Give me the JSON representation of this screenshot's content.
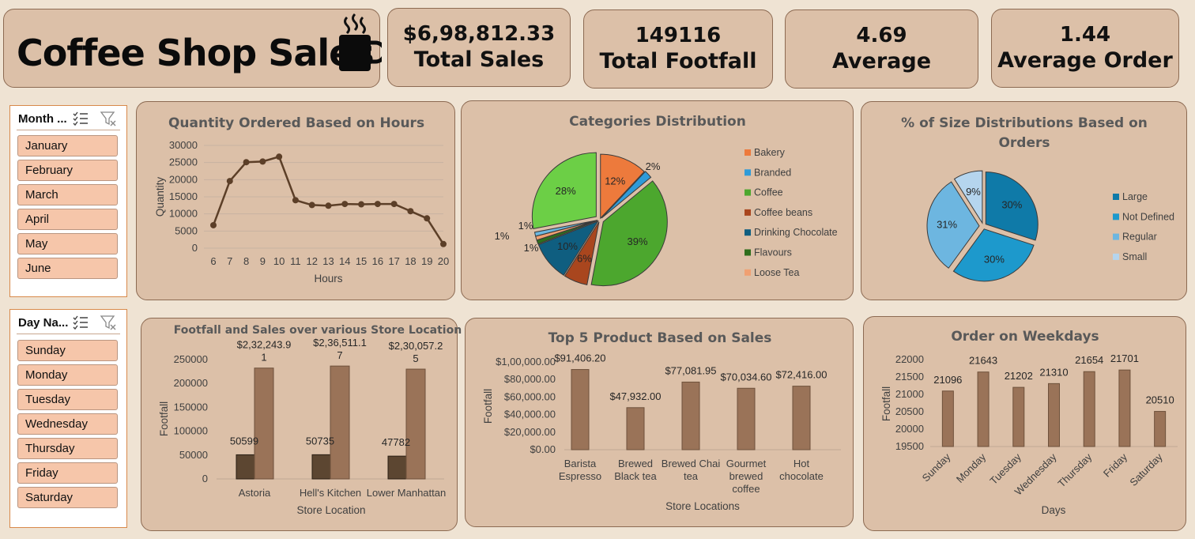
{
  "header": {
    "title": "Coffee Shop Sales",
    "icon": "coffee-mug-icon"
  },
  "kpis": [
    {
      "value": "$6,98,812.33",
      "label": "Total Sales"
    },
    {
      "value": "149116",
      "label": "Total Footfall"
    },
    {
      "value": "4.69",
      "label": "Average"
    },
    {
      "value": "1.44",
      "label": "Average Order"
    }
  ],
  "slicers": {
    "month": {
      "header": "Month ...",
      "items": [
        "January",
        "February",
        "March",
        "April",
        "May",
        "June"
      ]
    },
    "day": {
      "header": "Day Na...",
      "items": [
        "Sunday",
        "Monday",
        "Tuesday",
        "Wednesday",
        "Thursday",
        "Friday",
        "Saturday"
      ]
    }
  },
  "colors": {
    "background": "#efe3d3",
    "card": "#dcc0a8",
    "border": "#8c6a52",
    "bar_main": "#9a7358",
    "bar_dark": "#5c4631",
    "line": "#5c3f28"
  },
  "chart_data": [
    {
      "id": "hours",
      "type": "line",
      "title": "Quantity Ordered Based on Hours",
      "xlabel": "Hours",
      "ylabel": "Quantity",
      "x": [
        6,
        7,
        8,
        9,
        10,
        11,
        12,
        13,
        14,
        15,
        16,
        17,
        18,
        19,
        20
      ],
      "values": [
        6700,
        19600,
        25100,
        25300,
        26700,
        14000,
        12600,
        12400,
        12900,
        12800,
        12900,
        12900,
        10800,
        8700,
        1200
      ],
      "ylim": [
        0,
        30000
      ],
      "yticks": [
        "0",
        "5000",
        "10000",
        "15000",
        "20000",
        "25000",
        "30000"
      ],
      "grid": true
    },
    {
      "id": "categories",
      "type": "pie",
      "title": "Categories Distribution",
      "slices": [
        {
          "name": "Bakery",
          "pct": 12,
          "label": "12%",
          "color": "#ed7a3c"
        },
        {
          "name": "Branded",
          "pct": 2,
          "label": "2%",
          "color": "#2f9bd8"
        },
        {
          "name": "Coffee",
          "pct": 39,
          "label": "39%",
          "color": "#4ca72e"
        },
        {
          "name": "Coffee beans",
          "pct": 6,
          "label": "6%",
          "color": "#a9461e"
        },
        {
          "name": "Drinking Chocolate",
          "pct": 10,
          "label": "10%",
          "color": "#0f5e80"
        },
        {
          "name": "Flavours",
          "pct": 1,
          "label": "1%",
          "color": "#2e6e1c"
        },
        {
          "name": "Loose Tea",
          "pct": 1,
          "label": "1%",
          "color": "#f0a072"
        },
        {
          "name": "",
          "pct": 1,
          "label": "1%",
          "color": "#6cb8e0"
        },
        {
          "name": "",
          "pct": 28,
          "label": "28%",
          "color": "#6ccf46"
        }
      ],
      "legend": "right"
    },
    {
      "id": "sizes",
      "type": "pie",
      "title": "% of Size Distributions Based on Orders",
      "slices": [
        {
          "name": "Large",
          "pct": 30,
          "label": "30%",
          "color": "#0f7aa8"
        },
        {
          "name": "Not Defined",
          "pct": 30,
          "label": "30%",
          "color": "#1d99cc"
        },
        {
          "name": "Regular",
          "pct": 31,
          "label": "31%",
          "color": "#6db6e0"
        },
        {
          "name": "Small",
          "pct": 9,
          "label": "9%",
          "color": "#b5d5ee"
        }
      ],
      "legend": "right"
    },
    {
      "id": "footfall",
      "type": "bar",
      "title": "Footfall and Sales over various Store Location",
      "xlabel": "Store Location",
      "ylabel": "Footfall",
      "categories": [
        "Astoria",
        "Hell's Kitchen",
        "Lower Manhattan"
      ],
      "series": [
        {
          "values": [
            50599,
            50735,
            47782
          ],
          "labels": [
            "50599",
            "50735",
            "47782"
          ]
        },
        {
          "values": [
            232243.91,
            236511.17,
            230057.25
          ],
          "labels_line1": [
            "$2,32,243.9",
            "$2,36,511.1",
            "$2,30,057.2"
          ],
          "labels_line2": [
            "1",
            "7",
            "5"
          ]
        }
      ],
      "ylim": [
        0,
        250000
      ],
      "yticks": [
        "0",
        "50000",
        "100000",
        "150000",
        "200000",
        "250000"
      ]
    },
    {
      "id": "products",
      "type": "bar",
      "title": "Top 5 Product Based on Sales",
      "xlabel": "Store Locations",
      "ylabel": "Footfall",
      "categories": [
        [
          "Barista",
          "Espresso"
        ],
        [
          "Brewed",
          "Black tea"
        ],
        [
          "Brewed Chai",
          "tea"
        ],
        [
          "Gourmet",
          "brewed",
          "coffee"
        ],
        [
          "Hot",
          "chocolate"
        ]
      ],
      "values": [
        91406.2,
        47932.0,
        77081.95,
        70034.6,
        72416.0
      ],
      "labels": [
        "$91,406.20",
        "$47,932.00",
        "$77,081.95",
        "$70,034.60",
        "$72,416.00"
      ],
      "ylim": [
        0,
        100000
      ],
      "yticks": [
        "$0.00",
        "$20,000.00",
        "$40,000.00",
        "$60,000.00",
        "$80,000.00",
        "$1,00,000.00"
      ]
    },
    {
      "id": "weekdays",
      "type": "bar",
      "title": "Order on Weekdays",
      "xlabel": "Days",
      "ylabel": "Footfall",
      "categories": [
        "Sunday",
        "Monday",
        "Tuesday",
        "Wednesday",
        "Thursday",
        "Friday",
        "Saturday"
      ],
      "values": [
        21096,
        21643,
        21202,
        21310,
        21654,
        21701,
        20510
      ],
      "labels": [
        "21096",
        "21643",
        "21202",
        "21310",
        "21654",
        "21701",
        "20510"
      ],
      "ylim": [
        19500,
        22000
      ],
      "yticks": [
        "19500",
        "20000",
        "20500",
        "21000",
        "21500",
        "22000"
      ]
    }
  ]
}
